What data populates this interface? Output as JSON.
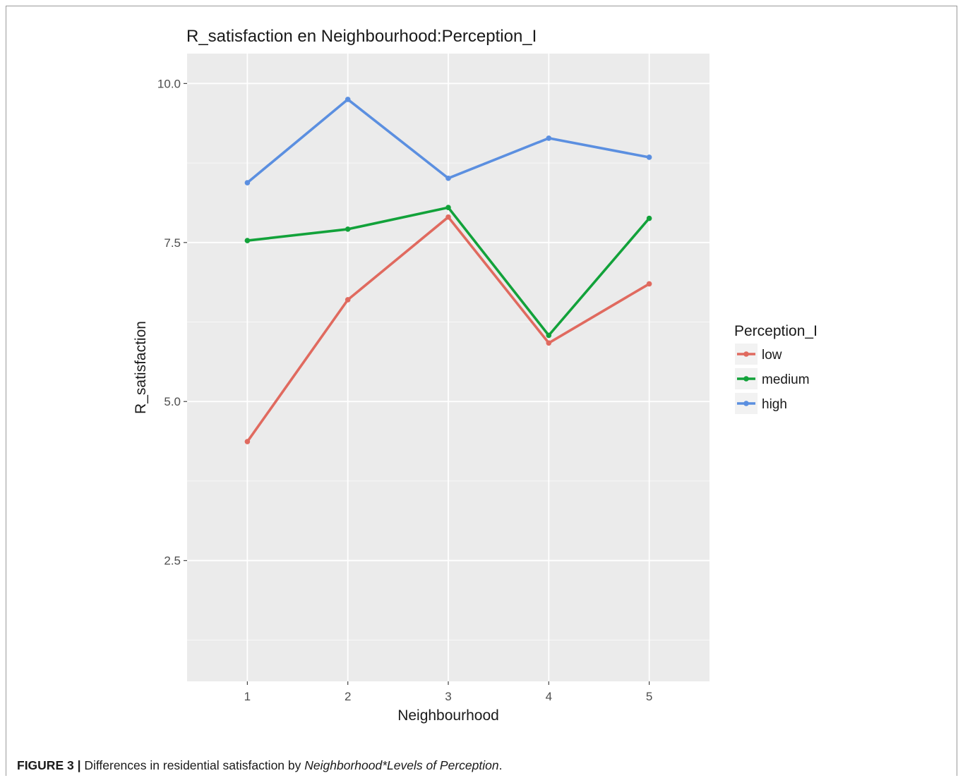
{
  "chart_data": {
    "type": "line",
    "title": "R_satisfaction en Neighbourhood:Perception_I",
    "xlabel": "Neighbourhood",
    "ylabel": "R_satisfaction",
    "categories": [
      1,
      2,
      3,
      4,
      5
    ],
    "x_tick_labels": [
      "1",
      "2",
      "3",
      "4",
      "5"
    ],
    "y_ticks": [
      2.5,
      5.0,
      7.5,
      10.0
    ],
    "y_tick_labels": [
      "2.5",
      "5.0",
      "7.5",
      "10.0"
    ],
    "xlim": [
      0.4,
      5.6
    ],
    "ylim": [
      0.6,
      10.47
    ],
    "grid": true,
    "legend": {
      "title": "Perception_I",
      "position": "right"
    },
    "series": [
      {
        "name": "low",
        "color": "#E06A5F",
        "values": [
          4.37,
          6.6,
          7.9,
          5.92,
          6.85
        ]
      },
      {
        "name": "medium",
        "color": "#12A23A",
        "values": [
          7.53,
          7.71,
          8.05,
          6.04,
          7.88
        ]
      },
      {
        "name": "high",
        "color": "#5B8FE0",
        "values": [
          8.44,
          9.75,
          8.51,
          9.14,
          8.84
        ]
      }
    ]
  },
  "caption": {
    "label": "FIGURE 3 |",
    "text_before": " Differences in residential satisfaction by ",
    "italic": "Neighborhood*Levels of Perception",
    "text_after": "."
  }
}
